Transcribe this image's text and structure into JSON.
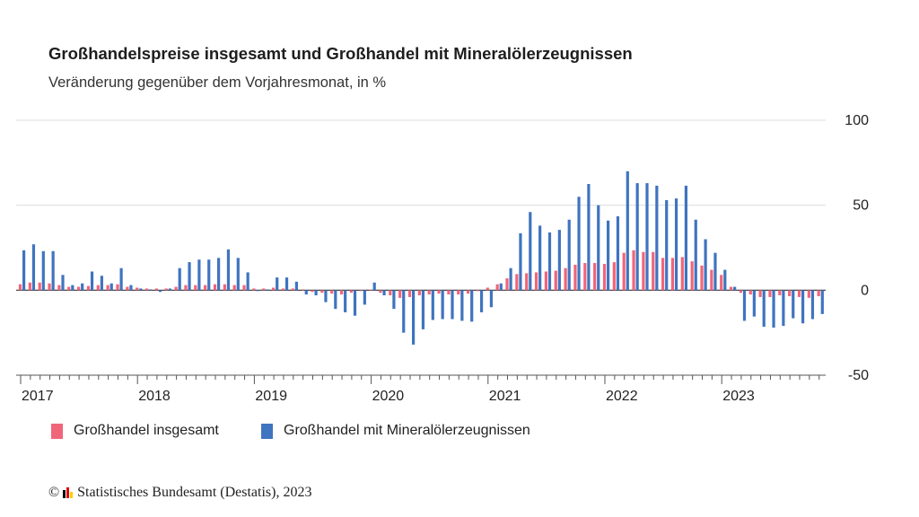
{
  "title": "Großhandelspreise insgesamt und Großhandel mit Mineralölerzeugnissen",
  "subtitle": "Veränderung gegenüber dem Vorjahresmonat, in %",
  "footer": {
    "copyright_symbol": "©",
    "source": "Statistisches Bundesamt (Destatis), 2023",
    "logo_colors": [
      "#000000",
      "#dd0000",
      "#ffcc00"
    ]
  },
  "chart_data": {
    "type": "bar",
    "ylim": [
      -50,
      100
    ],
    "yticks": [
      100,
      50,
      0,
      -50
    ],
    "x_tick_labels": [
      "2017",
      "2018",
      "2019",
      "2020",
      "2021",
      "2022",
      "2023"
    ],
    "grid": true,
    "y_axis_position": "right",
    "legend_placement": "bottom-left",
    "categories": [
      "2017-01",
      "2017-02",
      "2017-03",
      "2017-04",
      "2017-05",
      "2017-06",
      "2017-07",
      "2017-08",
      "2017-09",
      "2017-10",
      "2017-11",
      "2017-12",
      "2018-01",
      "2018-02",
      "2018-03",
      "2018-04",
      "2018-05",
      "2018-06",
      "2018-07",
      "2018-08",
      "2018-09",
      "2018-10",
      "2018-11",
      "2018-12",
      "2019-01",
      "2019-02",
      "2019-03",
      "2019-04",
      "2019-05",
      "2019-06",
      "2019-07",
      "2019-08",
      "2019-09",
      "2019-10",
      "2019-11",
      "2019-12",
      "2020-01",
      "2020-02",
      "2020-03",
      "2020-04",
      "2020-05",
      "2020-06",
      "2020-07",
      "2020-08",
      "2020-09",
      "2020-10",
      "2020-11",
      "2020-12",
      "2021-01",
      "2021-02",
      "2021-03",
      "2021-04",
      "2021-05",
      "2021-06",
      "2021-07",
      "2021-08",
      "2021-09",
      "2021-10",
      "2021-11",
      "2021-12",
      "2022-01",
      "2022-02",
      "2022-03",
      "2022-04",
      "2022-05",
      "2022-06",
      "2022-07",
      "2022-08",
      "2022-09",
      "2022-10",
      "2022-11",
      "2022-12",
      "2023-01",
      "2023-02",
      "2023-03",
      "2023-04",
      "2023-05",
      "2023-06",
      "2023-07",
      "2023-08",
      "2023-09",
      "2023-10",
      "2023-11"
    ],
    "series": [
      {
        "name": "Großhandel insgesamt",
        "color": "#f0657a",
        "values": [
          3.5,
          4.5,
          4.5,
          4,
          3,
          2,
          2,
          2.5,
          3,
          3,
          3.5,
          2,
          1.5,
          1,
          1,
          1,
          2,
          3,
          3,
          3,
          3.5,
          3.5,
          3,
          3,
          1,
          1,
          1.5,
          1,
          1,
          0.5,
          -1,
          -1.5,
          -2,
          -2.5,
          -1.5,
          -0.5,
          0,
          -1.5,
          -3,
          -4.5,
          -4,
          -3,
          -2.5,
          -2,
          -2.5,
          -2.5,
          -2,
          -0.5,
          1.5,
          3.5,
          7,
          9.5,
          10,
          10.5,
          11,
          11.5,
          13,
          15,
          16,
          16,
          15.5,
          16.5,
          22,
          23.5,
          22.5,
          22.5,
          19,
          19,
          19.5,
          17,
          14.5,
          12,
          9,
          2,
          -1.5,
          -2.5,
          -4,
          -4,
          -3,
          -3.5,
          -4,
          -4.5,
          -3.5
        ]
      },
      {
        "name": "Großhandel mit Mineralölerzeugnissen",
        "color": "#3f74bf",
        "values": [
          23.5,
          27,
          23,
          23,
          9,
          3,
          4,
          11,
          8.5,
          4,
          13,
          3,
          1,
          0.5,
          -1,
          1,
          13,
          16.5,
          18,
          18,
          19,
          24,
          19,
          10.5,
          -0.5,
          0.5,
          7.5,
          7.5,
          5,
          -2.5,
          -3,
          -7,
          -11,
          -13,
          -15,
          -8.5,
          4.5,
          -3,
          -11,
          -25,
          -32,
          -23,
          -17.5,
          -17,
          -17,
          -18,
          -18.5,
          -13,
          -10,
          4,
          13,
          33.5,
          46,
          38,
          34,
          35.5,
          41.5,
          55,
          62.5,
          50,
          41,
          43.5,
          70,
          63,
          63,
          61.5,
          53,
          54,
          61.5,
          41.5,
          30,
          22,
          12,
          2,
          -18,
          -15.5,
          -21.5,
          -22,
          -21,
          -16.5,
          -19.5,
          -17,
          -14
        ]
      }
    ]
  }
}
